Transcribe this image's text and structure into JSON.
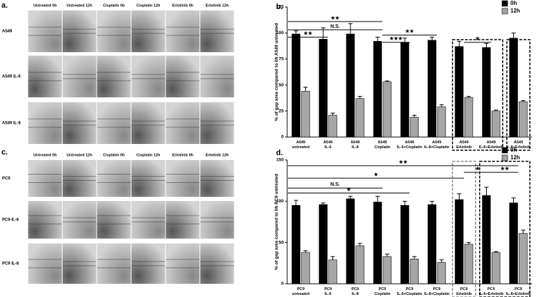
{
  "image_panels": [
    {
      "panel": "a.",
      "columns": [
        "Untreated 0h",
        "Untreated 12h",
        "Cisplatin 0h",
        "Cisplatin 12h",
        "Erlotinib 0h",
        "Erlotinib 12h"
      ],
      "rows": [
        "A549",
        "A549 IL-6",
        "A549 IL-8"
      ]
    },
    {
      "panel": "c.",
      "columns": [
        "Untreated 0h",
        "Untreated 12h",
        "Cisplatin 0h",
        "Cisplatin 12h",
        "Erlotinib 0h",
        "Erlotinib 12h"
      ],
      "rows": [
        "PC9",
        "PC9 IL-6",
        "PC9 IL-8"
      ]
    }
  ],
  "chart_data": [
    {
      "type": "bar",
      "panel": "b.",
      "ylabel": "% of gap area compared to 0h A549 untreated",
      "categories": [
        [
          "A549",
          "untreated"
        ],
        [
          "A549",
          "IL-6"
        ],
        [
          "A549",
          "IL-8"
        ],
        [
          "A549",
          "Cisplatin"
        ],
        [
          "A549",
          "IL-6+Cisplatin"
        ],
        [
          "A549",
          "IL-8+Cisplatin"
        ],
        [
          "A549",
          "Erlotinib"
        ],
        [
          "A549",
          "IL-6+Erlotinib"
        ],
        [
          "A549",
          "IL-8+Erlotinib"
        ]
      ],
      "series": [
        {
          "name": "0h",
          "color": "#000000",
          "values": [
            99,
            94,
            99,
            92,
            91,
            93,
            87,
            86,
            95
          ],
          "errors": [
            3,
            11,
            10,
            4,
            4,
            3,
            5,
            4,
            5
          ]
        },
        {
          "name": "12h",
          "color": "#a6a6a6",
          "values": [
            44,
            21,
            37,
            53,
            19,
            29,
            38,
            25,
            34
          ],
          "errors": [
            4,
            2,
            2,
            1,
            2,
            2,
            1,
            1,
            1
          ]
        }
      ],
      "ylim": [
        0,
        125
      ],
      "yticks": [
        0,
        25,
        50,
        75,
        100,
        125
      ],
      "brackets": [
        {
          "label": "★★",
          "from": 0,
          "to": 3,
          "y": 111
        },
        {
          "label": "N.S.",
          "from": 0,
          "to": 3,
          "y": 103
        },
        {
          "label": "★★",
          "from": 0,
          "to": 1,
          "y": 96
        },
        {
          "label": "★★",
          "from": 3,
          "to": 5,
          "y": 98
        },
        {
          "label": "★★★",
          "from": 3,
          "to": 4,
          "y": 91
        },
        {
          "label": "★",
          "from": 6,
          "to": 7,
          "y": 91
        }
      ]
    },
    {
      "type": "bar",
      "panel": "d.",
      "ylabel": "% of gap area compared to 0h PC9 untreated",
      "categories": [
        [
          "PC9",
          "untreated"
        ],
        [
          "PC9",
          "IL-6"
        ],
        [
          "PC9",
          "IL-8"
        ],
        [
          "PC9",
          "Cisplatin"
        ],
        [
          "PC9",
          "IL-6+Cisplatin"
        ],
        [
          "PC9",
          "IL-8+Cisplatin"
        ],
        [
          "PC9",
          "Erlotinib"
        ],
        [
          "PC9",
          "IL-6+Erlotinib"
        ],
        [
          "PC9",
          "IL-8+Erlotinib"
        ]
      ],
      "series": [
        {
          "name": "0h",
          "color": "#000000",
          "values": [
            95,
            96,
            103,
            99,
            95,
            96,
            102,
            107,
            98
          ],
          "errors": [
            6,
            2,
            3,
            7,
            5,
            4,
            7,
            10,
            6
          ]
        },
        {
          "name": "12h",
          "color": "#a6a6a6",
          "values": [
            38,
            29,
            46,
            33,
            30,
            26,
            48,
            38,
            61
          ],
          "errors": [
            2,
            4,
            3,
            3,
            3,
            3,
            2,
            1,
            4
          ]
        }
      ],
      "ylim": [
        0,
        150
      ],
      "yticks": [
        0,
        50,
        100,
        150
      ],
      "brackets": [
        {
          "label": "★★",
          "from": 0,
          "to": 8,
          "y": 143
        },
        {
          "label": "★",
          "from": 0,
          "to": 6,
          "y": 128
        },
        {
          "label": "★",
          "from": 6,
          "to": 7,
          "y": 135
        },
        {
          "label": "★★",
          "from": 7,
          "to": 8,
          "y": 135
        },
        {
          "label": "N.S.",
          "from": 0,
          "to": 3,
          "y": 116
        },
        {
          "label": "★",
          "from": 0,
          "to": 4,
          "y": 110
        }
      ]
    }
  ]
}
